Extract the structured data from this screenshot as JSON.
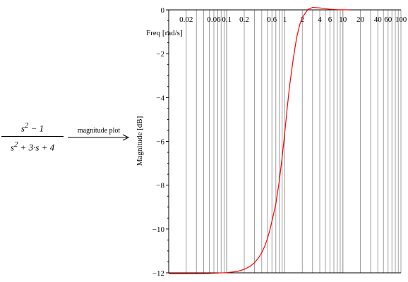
{
  "expression": {
    "numerator_html": "s<sup>2</sup> − 1",
    "denominator_html": "s<sup>2</sup> + 3·s + 4",
    "arrow_label": "magnitude plot"
  },
  "chart_data": {
    "type": "line",
    "title": "",
    "xlabel": "Freq [rad/s]",
    "ylabel": "Magnitude [dB]",
    "x_scale": "log",
    "xlim": [
      0.01,
      100
    ],
    "ylim": [
      -12,
      0
    ],
    "grid": true,
    "x_ticks": [
      0.02,
      0.06,
      0.1,
      0.2,
      0.6,
      1,
      2,
      4,
      6,
      10,
      20,
      40,
      60,
      100
    ],
    "x_tick_labels": [
      "0.02",
      "0.06",
      "0.1",
      "0.2",
      "0.6",
      "1",
      "2",
      "4",
      "6",
      "10",
      "20",
      "40",
      "60",
      "100"
    ],
    "y_ticks": [
      0,
      -2,
      -4,
      -6,
      -8,
      -10,
      -12
    ],
    "y_tick_labels": [
      "0",
      "−2",
      "−4",
      "−6",
      "−8",
      "−10",
      "−12"
    ],
    "series": [
      {
        "color": "#ff0000",
        "x": [
          0.01,
          0.02,
          0.05,
          0.1,
          0.15,
          0.2,
          0.25,
          0.3,
          0.35,
          0.4,
          0.45,
          0.5,
          0.55,
          0.6,
          0.7,
          0.8,
          0.9,
          1.0,
          1.1,
          1.2,
          1.4,
          1.6,
          1.8,
          2.0,
          2.5,
          3.0,
          4.0,
          5.0,
          6.0,
          8.0,
          10.0,
          13.0
        ],
        "y": [
          -12.04,
          -12.04,
          -12.03,
          -11.99,
          -11.94,
          -11.84,
          -11.71,
          -11.54,
          -11.33,
          -11.08,
          -10.79,
          -10.45,
          -10.07,
          -9.64,
          -8.86,
          -7.84,
          -6.72,
          -5.57,
          -4.48,
          -3.53,
          -2.21,
          -1.26,
          -0.69,
          -0.35,
          0.02,
          0.11,
          0.09,
          0.05,
          0.03,
          0.01,
          0.005,
          0.0
        ]
      }
    ]
  }
}
